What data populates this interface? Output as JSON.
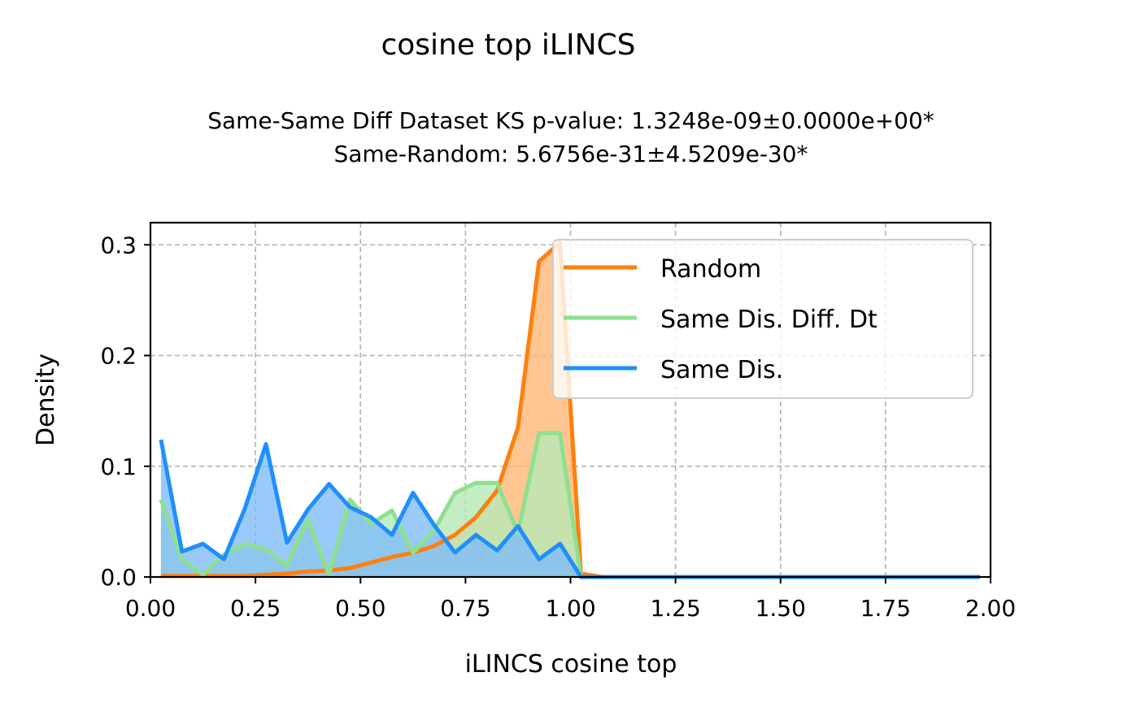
{
  "chart_data": {
    "type": "area",
    "title": "cosine top iLINCS",
    "subtitle_line1": "Same-Same Diff Dataset  KS p-value: 1.3248e-09±0.0000e+00*",
    "subtitle_line2": "Same-Random: 5.6756e-31±4.5209e-30*",
    "xlabel": "iLINCS cosine top",
    "ylabel": "Density",
    "xlim": [
      0.0,
      2.0
    ],
    "ylim": [
      0.0,
      0.32
    ],
    "xticks": [
      0.0,
      0.25,
      0.5,
      0.75,
      1.0,
      1.25,
      1.5,
      1.75,
      2.0
    ],
    "xtick_labels": [
      "0.00",
      "0.25",
      "0.50",
      "0.75",
      "1.00",
      "1.25",
      "1.50",
      "1.75",
      "2.00"
    ],
    "yticks": [
      0.0,
      0.1,
      0.2,
      0.3
    ],
    "ytick_labels": [
      "0.0",
      "0.1",
      "0.2",
      "0.3"
    ],
    "grid": true,
    "legend_position": "top-right",
    "series": [
      {
        "name": "Random",
        "color": "#ff7f0e",
        "fill": "#ffb877",
        "x": [
          0.025,
          0.075,
          0.125,
          0.175,
          0.225,
          0.275,
          0.325,
          0.375,
          0.425,
          0.475,
          0.525,
          0.575,
          0.625,
          0.675,
          0.725,
          0.775,
          0.825,
          0.875,
          0.925,
          0.975,
          1.025,
          1.075,
          1.125,
          1.175,
          1.225,
          1.275,
          1.325,
          1.375,
          1.425,
          1.475,
          1.525,
          1.575,
          1.625,
          1.675,
          1.725,
          1.775,
          1.825,
          1.875,
          1.925,
          1.975
        ],
        "y": [
          0.001,
          0.001,
          0.001,
          0.001,
          0.001,
          0.002,
          0.003,
          0.005,
          0.006,
          0.008,
          0.013,
          0.018,
          0.022,
          0.028,
          0.038,
          0.054,
          0.078,
          0.135,
          0.285,
          0.302,
          0.003,
          0.0,
          0.0,
          0.0,
          0.0,
          0.0,
          0.0,
          0.0,
          0.0,
          0.0,
          0.0,
          0.0,
          0.0,
          0.0,
          0.0,
          0.0,
          0.0,
          0.0,
          0.0,
          0.0
        ]
      },
      {
        "name": "Same Dis. Diff. Dt",
        "color": "#8ee08e",
        "fill": "#b6e9b6",
        "x": [
          0.025,
          0.075,
          0.125,
          0.175,
          0.225,
          0.275,
          0.325,
          0.375,
          0.425,
          0.475,
          0.525,
          0.575,
          0.625,
          0.675,
          0.725,
          0.775,
          0.825,
          0.875,
          0.925,
          0.975,
          1.025,
          1.075,
          1.125,
          1.175,
          1.225,
          1.275,
          1.325,
          1.375,
          1.425,
          1.475,
          1.525,
          1.575,
          1.625,
          1.675,
          1.725,
          1.775,
          1.825,
          1.875,
          1.925,
          1.975
        ],
        "y": [
          0.07,
          0.016,
          0.002,
          0.02,
          0.03,
          0.025,
          0.01,
          0.052,
          0.002,
          0.07,
          0.048,
          0.06,
          0.022,
          0.042,
          0.076,
          0.085,
          0.085,
          0.04,
          0.13,
          0.13,
          0.0,
          0.0,
          0.0,
          0.0,
          0.0,
          0.0,
          0.0,
          0.0,
          0.0,
          0.0,
          0.0,
          0.0,
          0.0,
          0.0,
          0.0,
          0.0,
          0.0,
          0.0,
          0.0,
          0.0
        ]
      },
      {
        "name": "Same Dis.",
        "color": "#1f8fff",
        "fill": "#80bdf8",
        "x": [
          0.025,
          0.075,
          0.125,
          0.175,
          0.225,
          0.275,
          0.325,
          0.375,
          0.425,
          0.475,
          0.525,
          0.575,
          0.625,
          0.675,
          0.725,
          0.775,
          0.825,
          0.875,
          0.925,
          0.975,
          1.025,
          1.075,
          1.125,
          1.175,
          1.225,
          1.275,
          1.325,
          1.375,
          1.425,
          1.475,
          1.525,
          1.575,
          1.625,
          1.675,
          1.725,
          1.775,
          1.825,
          1.875,
          1.925,
          1.975
        ],
        "y": [
          0.124,
          0.023,
          0.03,
          0.016,
          0.062,
          0.12,
          0.031,
          0.061,
          0.084,
          0.063,
          0.054,
          0.038,
          0.076,
          0.047,
          0.022,
          0.038,
          0.024,
          0.046,
          0.016,
          0.03,
          0.0,
          0.0,
          0.0,
          0.0,
          0.0,
          0.0,
          0.0,
          0.0,
          0.0,
          0.0,
          0.0,
          0.0,
          0.0,
          0.0,
          0.0,
          0.0,
          0.0,
          0.0,
          0.0,
          0.0
        ]
      }
    ]
  }
}
